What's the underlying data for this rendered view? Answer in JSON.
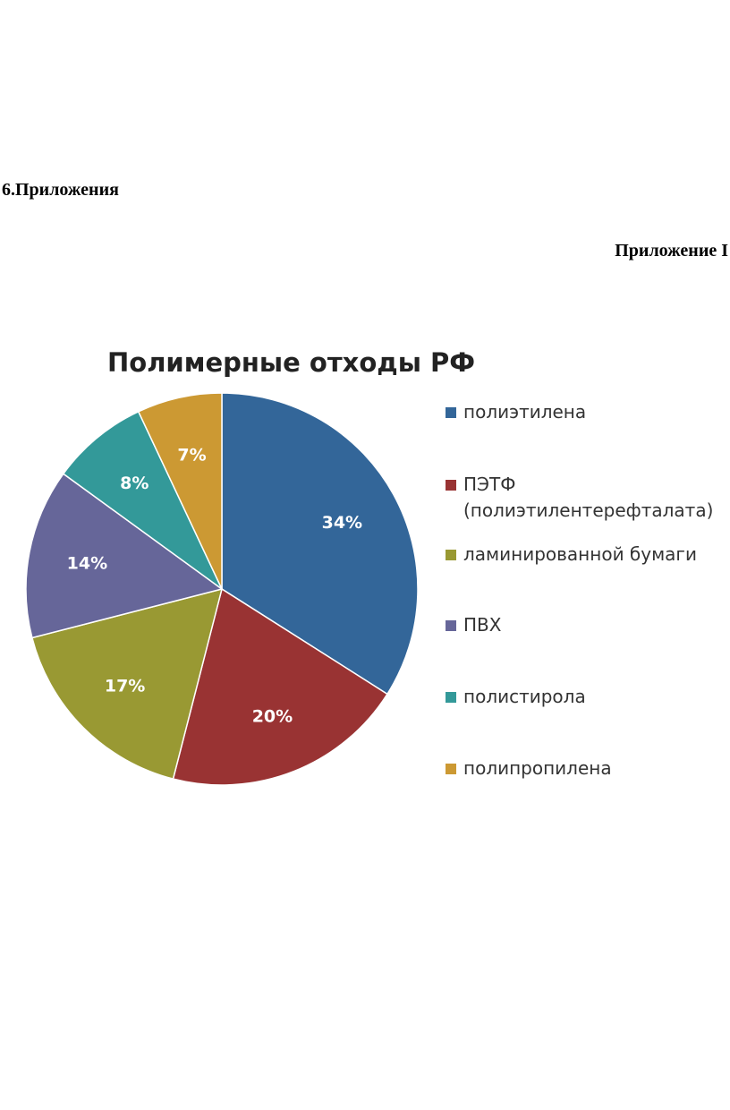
{
  "page": {
    "heading": "6.Приложения",
    "appendix_label": "Приложение I"
  },
  "chart_data": {
    "type": "pie",
    "title": "Полимерные отходы РФ",
    "legend_position": "right",
    "slices": [
      {
        "legend_lines": [
          "полиэтилена"
        ],
        "value": 34,
        "label": "34%",
        "color": "#336699"
      },
      {
        "legend_lines": [
          "ПЭТФ",
          "(полиэтилентерефталата)"
        ],
        "value": 20,
        "label": "20%",
        "color": "#993333"
      },
      {
        "legend_lines": [
          "ламинированной бумаги"
        ],
        "value": 17,
        "label": "17%",
        "color": "#999933"
      },
      {
        "legend_lines": [
          "ПВХ"
        ],
        "value": 14,
        "label": "14%",
        "color": "#666699"
      },
      {
        "legend_lines": [
          "полистирола"
        ],
        "value": 8,
        "label": "8%",
        "color": "#339999"
      },
      {
        "legend_lines": [
          "полипропилена"
        ],
        "value": 7,
        "label": "7%",
        "color": "#CC9933"
      }
    ]
  }
}
